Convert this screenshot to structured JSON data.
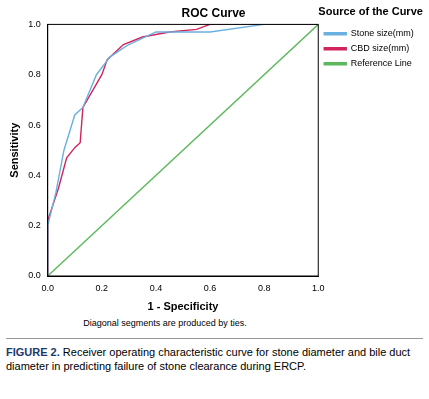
{
  "chart_data": {
    "type": "line",
    "title": "ROC Curve",
    "x_label": "1 - Specificity",
    "y_label": "Sensitivity",
    "legend_title": "Source of the Curve",
    "legend": "right",
    "grid": false,
    "annotations": [
      "Diagonal segments are produced by ties."
    ],
    "xlim": [
      0,
      1
    ],
    "ylim": [
      0,
      1
    ],
    "xticks": [
      {
        "value": 0,
        "label": "0.0"
      },
      {
        "value": 0.2,
        "label": "0.2"
      },
      {
        "value": 0.4,
        "label": "0.4"
      },
      {
        "value": 0.6,
        "label": "0.6"
      },
      {
        "value": 0.8,
        "label": "0.8"
      },
      {
        "value": 1,
        "label": "1.0"
      }
    ],
    "yticks": [
      {
        "value": 0,
        "label": "0.0"
      },
      {
        "value": 0.2,
        "label": "0.2"
      },
      {
        "value": 0.4,
        "label": "0.4"
      },
      {
        "value": 0.6,
        "label": "0.6"
      },
      {
        "value": 0.8,
        "label": "0.8"
      },
      {
        "value": 1,
        "label": "1.0"
      }
    ],
    "series": [
      {
        "name": "Stone size(mm)",
        "color": "#6ab0e0",
        "x": [
          0,
          0,
          0.03,
          0.06,
          0.1,
          0.13,
          0.18,
          0.23,
          0.27,
          0.3,
          0.4,
          0.5,
          0.6,
          0.8,
          1
        ],
        "values": [
          0,
          0.2,
          0.33,
          0.5,
          0.64,
          0.67,
          0.8,
          0.87,
          0.9,
          0.92,
          0.97,
          0.97,
          0.97,
          1,
          1
        ]
      },
      {
        "name": "CBD size(mm)",
        "color": "#d2245a",
        "x": [
          0,
          0,
          0.04,
          0.07,
          0.1,
          0.12,
          0.13,
          0.2,
          0.22,
          0.28,
          0.35,
          0.45,
          0.55,
          0.6,
          1
        ],
        "values": [
          0,
          0.22,
          0.35,
          0.47,
          0.51,
          0.53,
          0.67,
          0.8,
          0.86,
          0.92,
          0.95,
          0.97,
          0.98,
          1,
          1
        ]
      },
      {
        "name": "Reference Line",
        "color": "#5cb85c",
        "x": [
          0,
          1
        ],
        "values": [
          0,
          1
        ]
      }
    ]
  },
  "caption": {
    "label": "FIGURE 2.",
    "text": "Receiver operating characteristic curve for stone diameter and bile duct diameter in predicting failure of stone clearance during ERCP."
  }
}
